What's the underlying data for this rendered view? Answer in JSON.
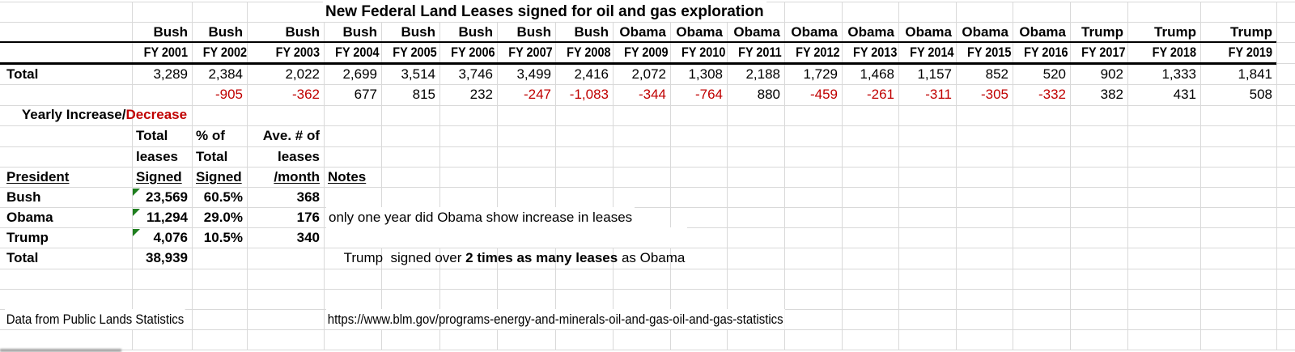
{
  "title": "New Federal Land Leases signed for oil and gas exploration",
  "colors": {
    "negative_red": "#c00000",
    "flag_green": "#1e7e1e",
    "gridline_gray": "#d9d9d9",
    "border_black": "#000000"
  },
  "main_table": {
    "total_label": "Total",
    "yearly_label_prefix": "Yearly Increase/",
    "yearly_label_suffix": "Decrease",
    "columns": [
      {
        "president": "Bush",
        "fy": "FY 2001",
        "total": "3,289",
        "change": ""
      },
      {
        "president": "Bush",
        "fy": "FY 2002",
        "total": "2,384",
        "change": "-905"
      },
      {
        "president": "Bush",
        "fy": "FY 2003",
        "total": "2,022",
        "change": "-362"
      },
      {
        "president": "Bush",
        "fy": "FY 2004",
        "total": "2,699",
        "change": "677"
      },
      {
        "president": "Bush",
        "fy": "FY 2005",
        "total": "3,514",
        "change": "815"
      },
      {
        "president": "Bush",
        "fy": "FY 2006",
        "total": "3,746",
        "change": "232"
      },
      {
        "president": "Bush",
        "fy": "FY 2007",
        "total": "3,499",
        "change": "-247"
      },
      {
        "president": "Bush",
        "fy": "FY 2008",
        "total": "2,416",
        "change": "-1,083"
      },
      {
        "president": "Obama",
        "fy": "FY 2009",
        "total": "2,072",
        "change": "-344"
      },
      {
        "president": "Obama",
        "fy": "FY 2010",
        "total": "1,308",
        "change": "-764"
      },
      {
        "president": "Obama",
        "fy": "FY 2011",
        "total": "2,188",
        "change": "880"
      },
      {
        "president": "Obama",
        "fy": "FY 2012",
        "total": "1,729",
        "change": "-459"
      },
      {
        "president": "Obama",
        "fy": "FY 2013",
        "total": "1,468",
        "change": "-261"
      },
      {
        "president": "Obama",
        "fy": "FY 2014",
        "total": "1,157",
        "change": "-311"
      },
      {
        "president": "Obama",
        "fy": "FY 2015",
        "total": "852",
        "change": "-305"
      },
      {
        "president": "Obama",
        "fy": "FY 2016",
        "total": "520",
        "change": "-332"
      },
      {
        "president": "Trump",
        "fy": "FY 2017",
        "total": "902",
        "change": "382"
      },
      {
        "president": "Trump",
        "fy": "FY 2018",
        "total": "1,333",
        "change": "431"
      },
      {
        "president": "Trump",
        "fy": "FY 2019",
        "total": "1,841",
        "change": "508"
      }
    ]
  },
  "summary_table": {
    "headers": {
      "president": "President",
      "col_leases_line1": "Total",
      "col_leases_line2": "leases",
      "col_leases_line3": "Signed",
      "col_pct_line1": "% of",
      "col_pct_line2": "Total",
      "col_pct_line3": "Signed",
      "col_avg_line1": "Ave. # of",
      "col_avg_line2": "leases",
      "col_avg_line3": "/month",
      "notes": "Notes"
    },
    "rows": [
      {
        "president": "Bush",
        "total_leases": "23,569",
        "pct_of_total": "60.5%",
        "avg_per_month": "368",
        "note": "",
        "flag": true
      },
      {
        "president": "Obama",
        "total_leases": "11,294",
        "pct_of_total": "29.0%",
        "avg_per_month": "176",
        "note": "only one year did Obama show increase in leases",
        "flag": true
      },
      {
        "president": "Trump",
        "total_leases": "4,076",
        "pct_of_total": "10.5%",
        "avg_per_month": "340",
        "note_prefix": "Trump  signed over ",
        "note_bold": "2 times as many leases",
        "note_suffix": " as Obama",
        "flag": true
      }
    ],
    "total_row": {
      "label": "Total",
      "value": "38,939"
    }
  },
  "footer": {
    "source": "Data from Public Lands Statistics",
    "url": "https://www.blm.gov/programs-energy-and-minerals-oil-and-gas-oil-and-gas-statistics"
  }
}
